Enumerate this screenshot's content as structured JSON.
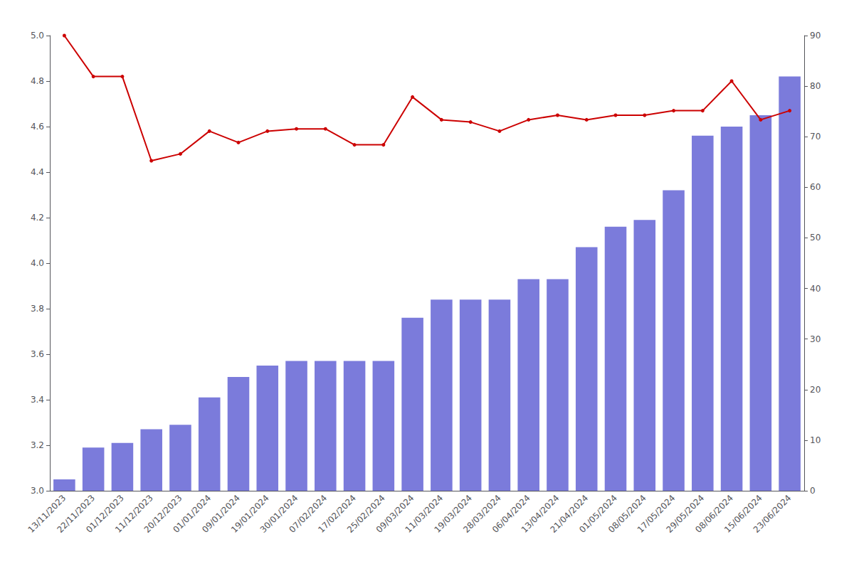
{
  "chart_data": {
    "type": "bar",
    "categories": [
      "13/11/2023",
      "22/11/2023",
      "01/12/2023",
      "11/12/2023",
      "20/12/2023",
      "01/01/2024",
      "09/01/2024",
      "19/01/2024",
      "30/01/2024",
      "07/02/2024",
      "17/02/2024",
      "25/02/2024",
      "09/03/2024",
      "11/03/2024",
      "19/03/2024",
      "28/03/2024",
      "06/04/2024",
      "13/04/2024",
      "21/04/2024",
      "01/05/2024",
      "08/05/2024",
      "17/05/2024",
      "29/05/2024",
      "08/06/2024",
      "15/06/2024",
      "23/06/2024"
    ],
    "series": [
      {
        "type": "bar",
        "color": "#7b7bdb",
        "values": [
          3.05,
          3.19,
          3.21,
          3.27,
          3.29,
          3.41,
          3.5,
          3.55,
          3.57,
          3.57,
          3.57,
          3.57,
          3.76,
          3.84,
          3.84,
          3.84,
          3.93,
          3.93,
          4.07,
          4.16,
          4.19,
          4.32,
          4.56,
          4.6,
          4.65,
          4.82
        ]
      },
      {
        "type": "line",
        "color": "#cc0000",
        "marker": "circle",
        "values": [
          5.0,
          4.82,
          4.82,
          4.45,
          4.48,
          4.58,
          4.53,
          4.58,
          4.59,
          4.59,
          4.52,
          4.52,
          4.73,
          4.63,
          4.62,
          4.58,
          4.63,
          4.65,
          4.63,
          4.65,
          4.65,
          4.67,
          4.67,
          4.8,
          4.63,
          4.67
        ]
      }
    ],
    "ylim": [
      3.0,
      5.0
    ],
    "yticks": [
      {
        "value": 3.0,
        "label": "3.0"
      },
      3.2,
      3.4,
      3.6,
      3.8,
      {
        "value": 4.0,
        "label": "4.0"
      },
      4.2,
      4.4,
      4.6,
      4.8,
      {
        "value": 5.0,
        "label": "5.0"
      }
    ],
    "y2lim": [
      0,
      90
    ],
    "y2ticks": [
      0,
      10,
      20,
      30,
      40,
      50,
      60,
      70,
      80,
      90
    ],
    "grid": false
  }
}
